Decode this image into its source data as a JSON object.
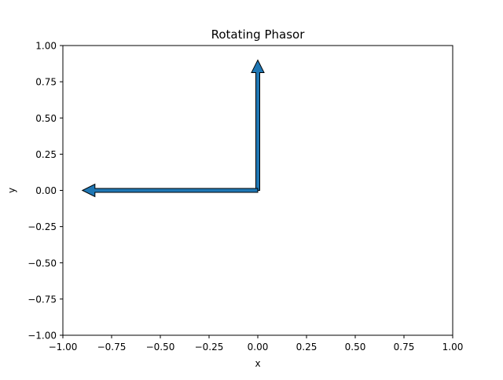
{
  "chart_data": {
    "type": "vector",
    "title": "Rotating Phasor",
    "xlabel": "x",
    "ylabel": "y",
    "xlim": [
      -1.0,
      1.0
    ],
    "ylim": [
      -1.0,
      1.0
    ],
    "x_ticks": [
      -1.0,
      -0.75,
      -0.5,
      -0.25,
      0.0,
      0.25,
      0.5,
      0.75,
      1.0
    ],
    "y_ticks": [
      -1.0,
      -0.75,
      -0.5,
      -0.25,
      0.0,
      0.25,
      0.5,
      0.75,
      1.0
    ],
    "x_tick_labels": [
      "−1.00",
      "−0.75",
      "−0.50",
      "−0.25",
      "0.00",
      "0.25",
      "0.50",
      "0.75",
      "1.00"
    ],
    "y_tick_labels": [
      "−1.00",
      "−0.75",
      "−0.50",
      "−0.25",
      "0.00",
      "0.25",
      "0.50",
      "0.75",
      "1.00"
    ],
    "grid": false,
    "arrows": [
      {
        "x0": 0.0,
        "y0": 0.0,
        "x1": 0.0,
        "y1": 0.9,
        "color": "#1f77b4",
        "edge_color": "#000000"
      },
      {
        "x0": 0.0,
        "y0": 0.0,
        "x1": -0.9,
        "y1": 0.0,
        "color": "#1f77b4",
        "edge_color": "#000000"
      }
    ]
  }
}
